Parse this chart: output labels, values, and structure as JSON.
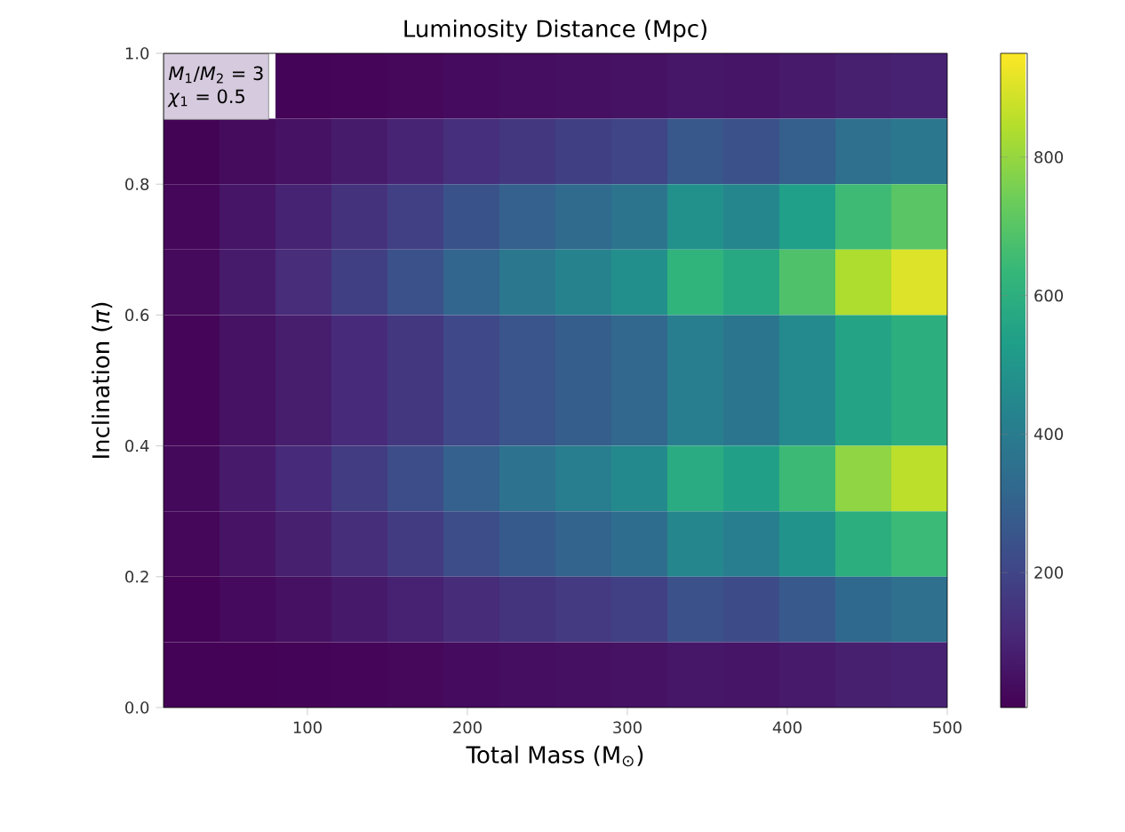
{
  "chart_data": {
    "type": "heatmap",
    "title": "Luminosity Distance (Mpc)",
    "xlabel": "Total Mass (M$_{⊙}$)",
    "ylabel": "Inclination (*π*)",
    "annotations": [
      "*M*$_{1}$/*M*$_{2}$ = 3",
      "*χ*$_{1}$ = 0.5"
    ],
    "x": [
      27.5,
      62.5,
      97.5,
      132.5,
      167.5,
      202.5,
      237.5,
      272.5,
      307.5,
      342.5,
      377.5,
      412.5,
      447.5,
      482.5
    ],
    "y": [
      0.95,
      0.85,
      0.75,
      0.65,
      0.55,
      0.45,
      0.35,
      0.25,
      0.15,
      0.05
    ],
    "xlim": [
      10,
      500
    ],
    "xticks": [
      100,
      200,
      300,
      400,
      500
    ],
    "ylim": [
      0,
      1
    ],
    "yticks": [
      {
        "value": 0,
        "label": "0.0"
      },
      0.2,
      0.4,
      0.6,
      0.8,
      {
        "value": 1,
        "label": "1.0"
      }
    ],
    "cells": [
      [
        null,
        null,
        13,
        19,
        25,
        33,
        40,
        45,
        50,
        65,
        60,
        72,
        88,
        95
      ],
      [
        12,
        32,
        52,
        76,
        100,
        132,
        160,
        180,
        200,
        260,
        240,
        288,
        352,
        380
      ],
      [
        22,
        59,
        96,
        141,
        185,
        244,
        296,
        333,
        370,
        481,
        444,
        533,
        651,
        703
      ],
      [
        29,
        76,
        124,
        181,
        238,
        314,
        380,
        428,
        475,
        618,
        570,
        684,
        836,
        903
      ],
      [
        19,
        50,
        82,
        120,
        158,
        208,
        252,
        284,
        315,
        410,
        378,
        454,
        554,
        599
      ],
      [
        19,
        50,
        82,
        120,
        158,
        208,
        252,
        284,
        315,
        410,
        378,
        454,
        554,
        599
      ],
      [
        27,
        72,
        117,
        171,
        225,
        297,
        360,
        405,
        450,
        585,
        540,
        648,
        792,
        855
      ],
      [
        20,
        54,
        88,
        129,
        170,
        224,
        272,
        306,
        340,
        442,
        408,
        490,
        598,
        646
      ],
      [
        11,
        30,
        48,
        70,
        93,
        122,
        148,
        167,
        185,
        241,
        222,
        266,
        326,
        352
      ],
      [
        10,
        10,
        13,
        19,
        25,
        33,
        40,
        45,
        50,
        65,
        60,
        72,
        88,
        95
      ]
    ],
    "clim": [
      5,
      950
    ],
    "cticks": [
      200,
      400,
      600,
      800
    ]
  }
}
